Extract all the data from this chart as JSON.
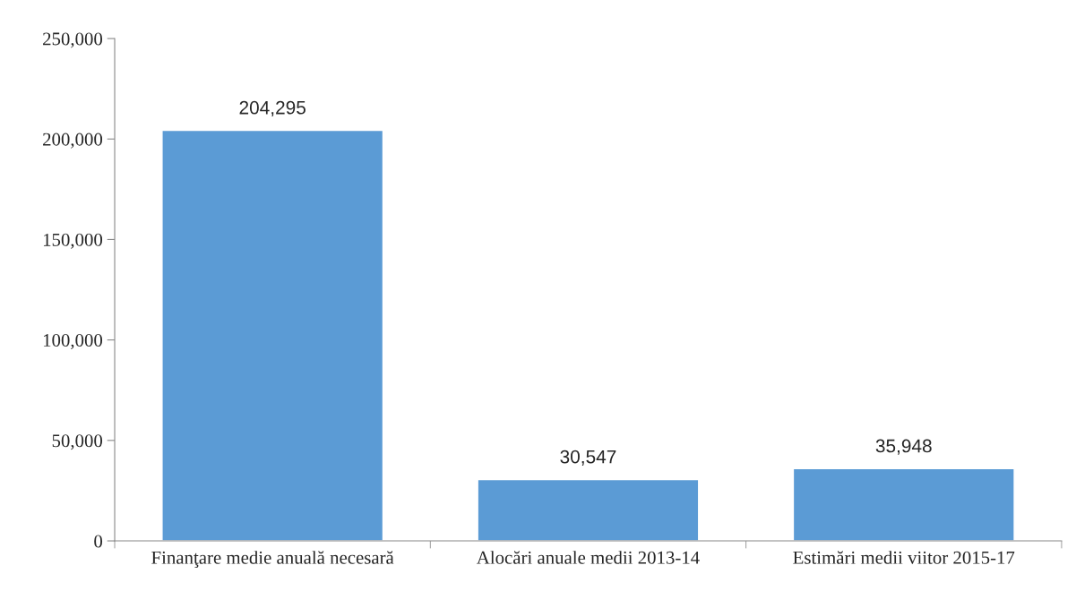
{
  "chart_data": {
    "type": "bar",
    "categories": [
      "Finanţare medie anuală necesară",
      "Alocări anuale medii 2013-14",
      "Estimări medii viitor 2015-17"
    ],
    "values": [
      204295,
      30547,
      35948
    ],
    "color": "#5b9bd5",
    "ylim": [
      0,
      250000
    ],
    "yticks": [
      {
        "value": 0,
        "label": "0"
      },
      {
        "value": 50000,
        "label": "50,000"
      },
      {
        "value": 100000,
        "label": "100,000"
      },
      {
        "value": 150000,
        "label": "150,000"
      },
      {
        "value": 200000,
        "label": "200,000"
      },
      {
        "value": 250000,
        "label": "250,000"
      }
    ],
    "value_labels": [
      "204,295",
      "30,547",
      "35,948"
    ],
    "grid": false,
    "legend": false
  }
}
